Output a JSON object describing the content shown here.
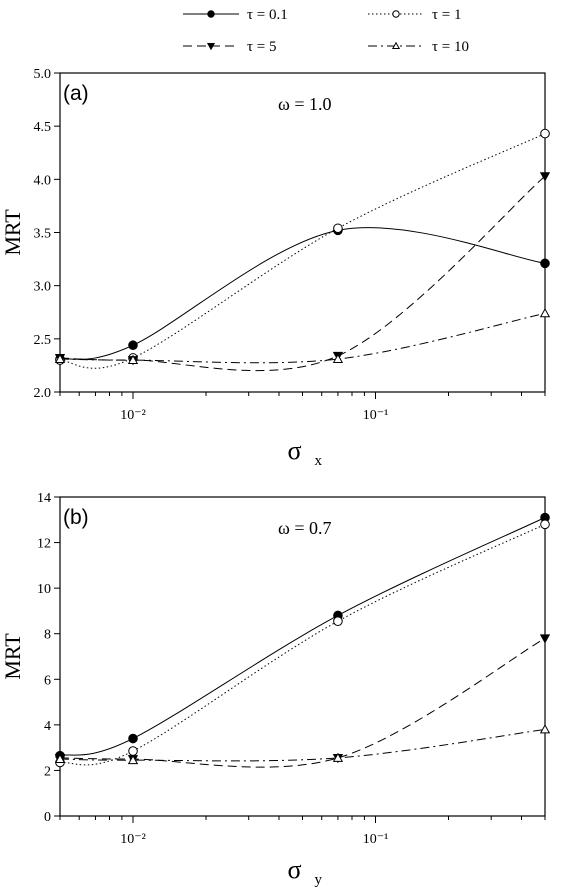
{
  "legend": [
    {
      "label": "τ = 0.1",
      "marker": "filled-circle",
      "dash": "solid"
    },
    {
      "label": "τ = 1",
      "marker": "open-circle",
      "dash": "dotted"
    },
    {
      "label": "τ = 5",
      "marker": "filled-triangle-down",
      "dash": "dashed"
    },
    {
      "label": "τ = 10",
      "marker": "open-triangle-up",
      "dash": "dashdot"
    }
  ],
  "chart_data": [
    {
      "type": "line",
      "panel_label": "(a)",
      "annotation": "ω = 1.0",
      "ylabel": "MRT",
      "xlabel": "σ",
      "xlabel_sub": "x",
      "xscale": "log",
      "xlim": [
        0.005,
        0.5
      ],
      "ylim": [
        2.0,
        5.0
      ],
      "yticks": [
        "2.0",
        "2.5",
        "3.0",
        "3.5",
        "4.0",
        "4.5",
        "5.0"
      ],
      "xticks": [
        {
          "value": 0.01,
          "label": "10⁻²"
        },
        {
          "value": 0.1,
          "label": "10⁻¹"
        }
      ],
      "x": [
        0.005,
        0.01,
        0.07,
        0.5
      ],
      "series": [
        {
          "name": "τ = 0.1",
          "values": [
            2.31,
            2.44,
            3.52,
            3.21
          ]
        },
        {
          "name": "τ = 1",
          "values": [
            2.3,
            2.32,
            3.54,
            4.43
          ]
        },
        {
          "name": "τ = 5",
          "values": [
            2.32,
            2.3,
            2.34,
            4.03
          ]
        },
        {
          "name": "τ = 10",
          "values": [
            2.31,
            2.3,
            2.31,
            2.74
          ]
        }
      ]
    },
    {
      "type": "line",
      "panel_label": "(b)",
      "annotation": "ω = 0.7",
      "ylabel": "MRT",
      "xlabel": "σ",
      "xlabel_sub": "y",
      "xscale": "log",
      "xlim": [
        0.005,
        0.5
      ],
      "ylim": [
        0,
        14
      ],
      "yticks": [
        "0",
        "2",
        "4",
        "6",
        "8",
        "10",
        "12",
        "14"
      ],
      "xticks": [
        {
          "value": 0.01,
          "label": "10⁻²"
        },
        {
          "value": 0.1,
          "label": "10⁻¹"
        }
      ],
      "x": [
        0.005,
        0.01,
        0.07,
        0.5
      ],
      "series": [
        {
          "name": "τ = 0.1",
          "values": [
            2.65,
            3.4,
            8.8,
            13.1
          ]
        },
        {
          "name": "τ = 1",
          "values": [
            2.35,
            2.85,
            8.55,
            12.8
          ]
        },
        {
          "name": "τ = 5",
          "values": [
            2.55,
            2.5,
            2.55,
            7.8
          ]
        },
        {
          "name": "τ = 10",
          "values": [
            2.5,
            2.45,
            2.55,
            3.8
          ]
        }
      ]
    }
  ]
}
